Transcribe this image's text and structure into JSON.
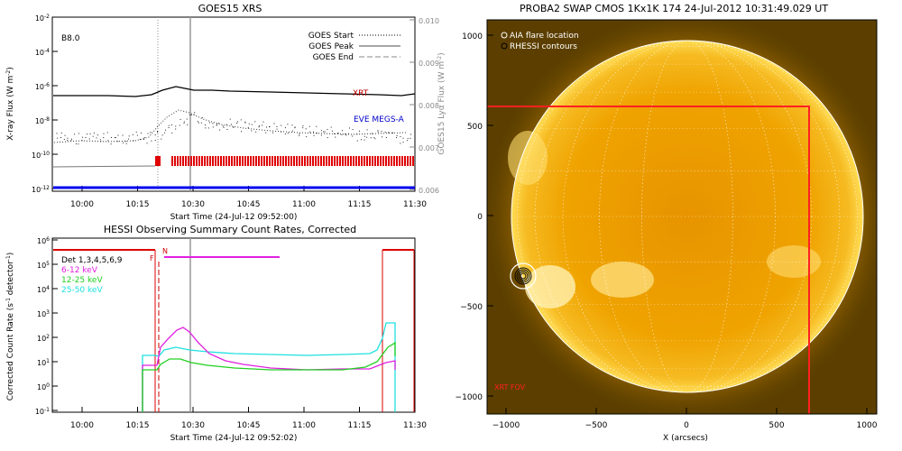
{
  "goes": {
    "title": "GOES15 XRS",
    "label_class": "B8.0",
    "ylabel_left": "X-ray Flux (W m",
    "ylabel_left_sup": "-2",
    "ylabel_left_end": ")",
    "ylabel_right": "GOES15 Lyα Flux (W m",
    "ylabel_right_sup": "-2",
    "ylabel_right_end": ")",
    "xlabel": "Start Time (24-Jul-12 09:52:00)",
    "legend": [
      "GOES Start",
      "GOES Peak",
      "GOES End"
    ],
    "xrt_label": "XRT",
    "eve_label": "EVE MEGS-A",
    "right_ticks": [
      "0.010",
      "0.009",
      "0.008",
      "0.007",
      "0.006"
    ],
    "left_ticks": [
      {
        "base": "10",
        "exp": "-2"
      },
      {
        "base": "10",
        "exp": "-4"
      },
      {
        "base": "10",
        "exp": "-6"
      },
      {
        "base": "10",
        "exp": "-8"
      },
      {
        "base": "10",
        "exp": "-10"
      },
      {
        "base": "10",
        "exp": "-12"
      }
    ],
    "x_ticks": [
      "10:00",
      "10:15",
      "10:30",
      "10:45",
      "11:00",
      "11:15",
      "11:30"
    ]
  },
  "hessi": {
    "title": "HESSI Observing Summary Count Rates, Corrected",
    "ylabel": "Corrected Count Rate (s",
    "ylabel_sup": "-1",
    "ylabel_end": " detector",
    "ylabel_sup2": "-1",
    "ylabel_end2": ")",
    "xlabel": "Start Time (24-Jul-12 09:52:02)",
    "legend": [
      {
        "text": "Det 1,3,4,5,6,9",
        "color": "#000000"
      },
      {
        "text": "6-12 keV",
        "color": "#e020e0"
      },
      {
        "text": "12-25 keV",
        "color": "#20d020"
      },
      {
        "text": "25-50 keV",
        "color": "#20e0e0"
      }
    ],
    "flag_n": "N",
    "flag_f": "F",
    "y_ticks": [
      {
        "base": "10",
        "exp": "6"
      },
      {
        "base": "10",
        "exp": "5"
      },
      {
        "base": "10",
        "exp": "4"
      },
      {
        "base": "10",
        "exp": "3"
      },
      {
        "base": "10",
        "exp": "2"
      },
      {
        "base": "10",
        "exp": "1"
      },
      {
        "base": "10",
        "exp": "0"
      },
      {
        "base": "10",
        "exp": "-1"
      }
    ],
    "x_ticks": [
      "10:00",
      "10:15",
      "10:30",
      "10:45",
      "11:00",
      "11:15",
      "11:30"
    ]
  },
  "swap": {
    "title": "PROBA2 SWAP CMOS 1Kx1K 174 24-Jul-2012 10:31:49.029 UT",
    "legend": [
      "AIA flare location",
      "RHESSI contours"
    ],
    "fov_label": "XRT FOV",
    "xlabel": "X (arcsecs)",
    "x_ticks": [
      "−1000",
      "−500",
      "0",
      "500",
      "1000"
    ],
    "y_ticks": [
      "1000",
      "500",
      "0",
      "−500",
      "−1000"
    ],
    "colors": {
      "disk": "#f0a800",
      "limb": "#ffd84a",
      "bg": "#6a4a00",
      "fov": "#ff2020"
    }
  },
  "chart_data": [
    {
      "type": "line",
      "title": "GOES15 XRS",
      "xlabel": "Start Time (24-Jul-12 09:52:00)",
      "ylabel": "X-ray Flux (W m^-2)",
      "y_scale": "log",
      "ylim": [
        1e-12,
        0.01
      ],
      "x_range": [
        "09:52",
        "11:32"
      ],
      "series": [
        {
          "name": "XRT",
          "x": [
            "09:52",
            "10:10",
            "10:20",
            "10:30",
            "10:45",
            "11:00",
            "11:15",
            "11:28"
          ],
          "values": [
            2e-07,
            2e-07,
            2.5e-07,
            8e-07,
            5e-07,
            3e-07,
            2e-07,
            2.3e-07
          ]
        },
        {
          "name": "EVE MEGS-A",
          "x": [
            "09:52",
            "10:20",
            "10:30",
            "10:45",
            "11:00",
            "11:15",
            "11:28"
          ],
          "values": [
            1e-09,
            1e-09,
            3e-08,
            6e-09,
            3e-09,
            2.5e-09,
            3e-09
          ]
        },
        {
          "x": [
            "09:52",
            "11:32"
          ],
          "values": [
            1e-11,
            1e-11
          ]
        }
      ],
      "markers": {
        "start": "10:22",
        "peak": "10:30",
        "end": ""
      },
      "y2_label": "GOES15 Lyα Flux (W m^-2)",
      "y2_range": [
        0.006,
        0.01
      ]
    },
    {
      "type": "line",
      "title": "HESSI Observing Summary Count Rates, Corrected",
      "xlabel": "Start Time (24-Jul-12 09:52:02)",
      "ylabel": "Corrected Count Rate (s^-1 detector^-1)",
      "y_scale": "log",
      "ylim": [
        0.1,
        1000000.0
      ],
      "series": [
        {
          "name": "6-12 keV",
          "x": [
            "10:17",
            "10:22",
            "10:25",
            "10:28",
            "10:32",
            "10:40",
            "10:50",
            "11:00",
            "11:10",
            "11:19",
            "11:22",
            "11:23"
          ],
          "values": [
            5,
            4,
            40,
            250,
            150,
            25,
            8,
            6,
            6,
            7,
            10,
            12
          ]
        },
        {
          "name": "12-25 keV",
          "x": [
            "10:17",
            "10:22",
            "10:25",
            "10:28",
            "10:35",
            "10:45",
            "11:00",
            "11:15",
            "11:20",
            "11:22",
            "11:23"
          ],
          "values": [
            4,
            3,
            6,
            8,
            6,
            5,
            5,
            6,
            10,
            60,
            70
          ]
        },
        {
          "name": "25-50 keV",
          "x": [
            "10:17",
            "10:22",
            "10:27",
            "10:35",
            "10:50",
            "11:05",
            "11:15",
            "11:20",
            "11:22",
            "11:23"
          ],
          "values": [
            20,
            22,
            30,
            25,
            20,
            20,
            25,
            60,
            400,
            400
          ]
        }
      ]
    }
  ]
}
